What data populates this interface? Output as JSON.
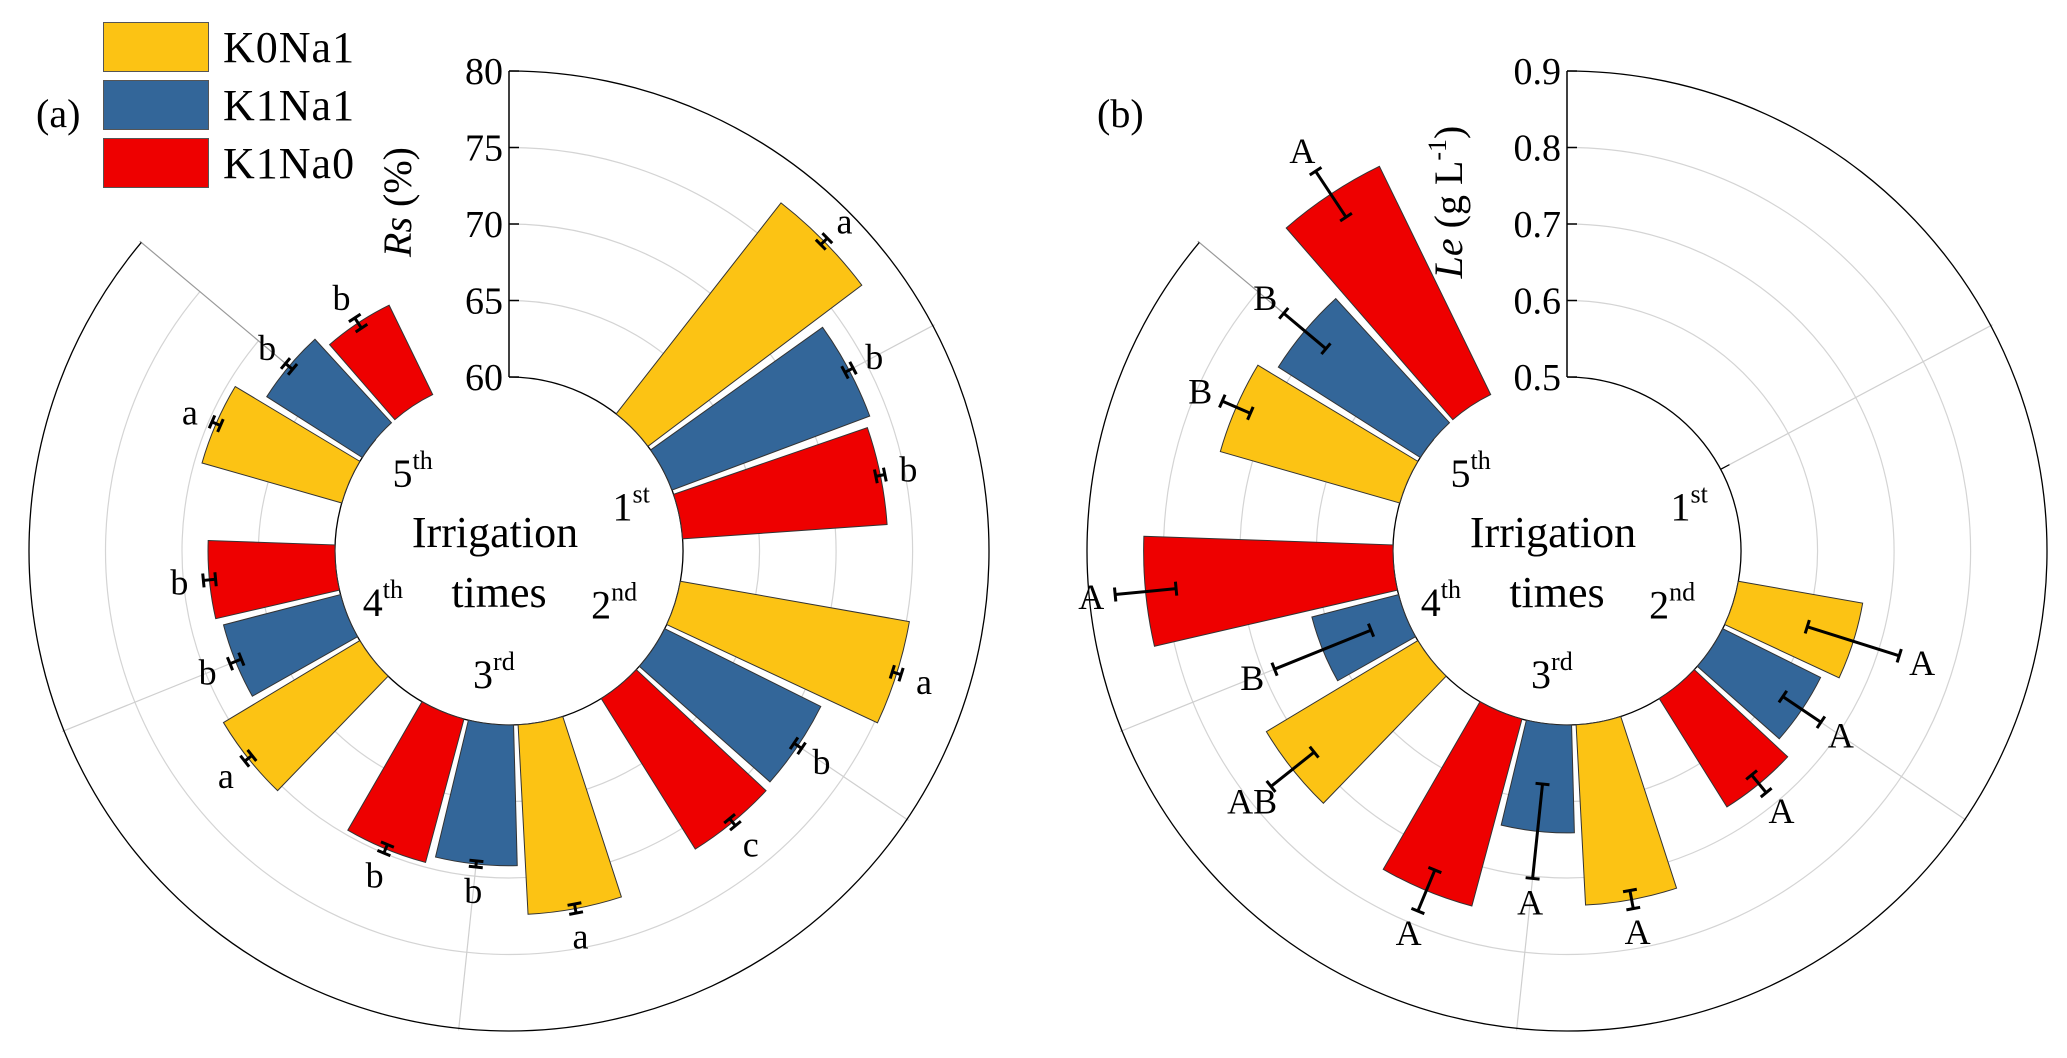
{
  "legend": [
    {
      "name": "K0Na1",
      "color": "#FCC314"
    },
    {
      "name": "K1Na1",
      "color": "#336699"
    },
    {
      "name": "K1Na0",
      "color": "#EE0000"
    }
  ],
  "panels": {
    "a": "(a)",
    "b": "(b)"
  },
  "center_label": {
    "line1": "Irrigation",
    "line2": "times"
  },
  "chart_data": [
    {
      "id": "a",
      "type": "bar",
      "layout": "polar",
      "title": "(a)",
      "ylabel": {
        "italic": "Rs",
        "rest": " (%)",
        "sup": "",
        "end": ""
      },
      "rlim": [
        60,
        80
      ],
      "rticks": [
        60,
        65,
        70,
        75,
        80
      ],
      "tick_labels": [
        "60",
        "65",
        "70",
        "75",
        "80"
      ],
      "grid": true,
      "categories": [
        {
          "num": "1",
          "sup": "st"
        },
        {
          "num": "2",
          "sup": "nd"
        },
        {
          "num": "3",
          "sup": "rd"
        },
        {
          "num": "4",
          "sup": "th"
        },
        {
          "num": "5",
          "sup": "th"
        }
      ],
      "series": [
        {
          "name": "K0Na1",
          "values": [
            77.5,
            75.2,
            72.4,
            70.4,
            69.5
          ],
          "errors": [
            0.3,
            0.3,
            0.3,
            0.3,
            0.3
          ],
          "letters": [
            "a",
            "a",
            "a",
            "a",
            "a"
          ]
        },
        {
          "name": "K1Na1",
          "values": [
            73.8,
            71.4,
            69.2,
            67.9,
            67.4
          ],
          "errors": [
            0.3,
            0.3,
            0.2,
            0.4,
            0.3
          ],
          "letters": [
            "b",
            "b",
            "b",
            "b",
            "b"
          ]
        },
        {
          "name": "K1Na0",
          "values": [
            73.4,
            71.6,
            69.7,
            68.3,
            66.5
          ],
          "errors": [
            0.3,
            0.3,
            0.3,
            0.4,
            0.4
          ],
          "letters": [
            "b",
            "c",
            "b",
            "b",
            "b"
          ]
        }
      ]
    },
    {
      "id": "b",
      "type": "bar",
      "layout": "polar",
      "title": "(b)",
      "ylabel": {
        "italic": "Le",
        "rest": " (g L",
        "sup": "-1",
        "end": ")"
      },
      "rlim": [
        0.5,
        0.9
      ],
      "rticks": [
        0.5,
        0.6,
        0.7,
        0.8,
        0.9
      ],
      "tick_labels": [
        "0.5",
        "0.6",
        "0.7",
        "0.8",
        "0.9"
      ],
      "grid": true,
      "categories": [
        {
          "num": "1",
          "sup": "st"
        },
        {
          "num": "2",
          "sup": "nd"
        },
        {
          "num": "3",
          "sup": "rd"
        },
        {
          "num": "4",
          "sup": "th"
        },
        {
          "num": "5",
          "sup": "th"
        }
      ],
      "series": [
        {
          "name": "K0Na1",
          "values": [
            null,
            0.665,
            0.736,
            0.731,
            0.744
          ],
          "errors": [
            null,
            0.063,
            0.012,
            0.036,
            0.02
          ],
          "letters": [
            "",
            "A",
            "A",
            "AB",
            "B"
          ]
        },
        {
          "name": "K1Na1",
          "values": [
            null,
            0.643,
            0.641,
            0.617,
            0.72
          ],
          "errors": [
            null,
            0.03,
            0.062,
            0.068,
            0.036
          ],
          "letters": [
            "",
            "A",
            "A",
            "B",
            "B"
          ]
        },
        {
          "name": "K1Na0",
          "values": [
            null,
            0.667,
            0.753,
            0.826,
            0.832
          ],
          "errors": [
            null,
            0.015,
            0.029,
            0.04,
            0.036
          ],
          "letters": [
            "",
            "A",
            "A",
            "A",
            "A"
          ]
        }
      ]
    }
  ]
}
